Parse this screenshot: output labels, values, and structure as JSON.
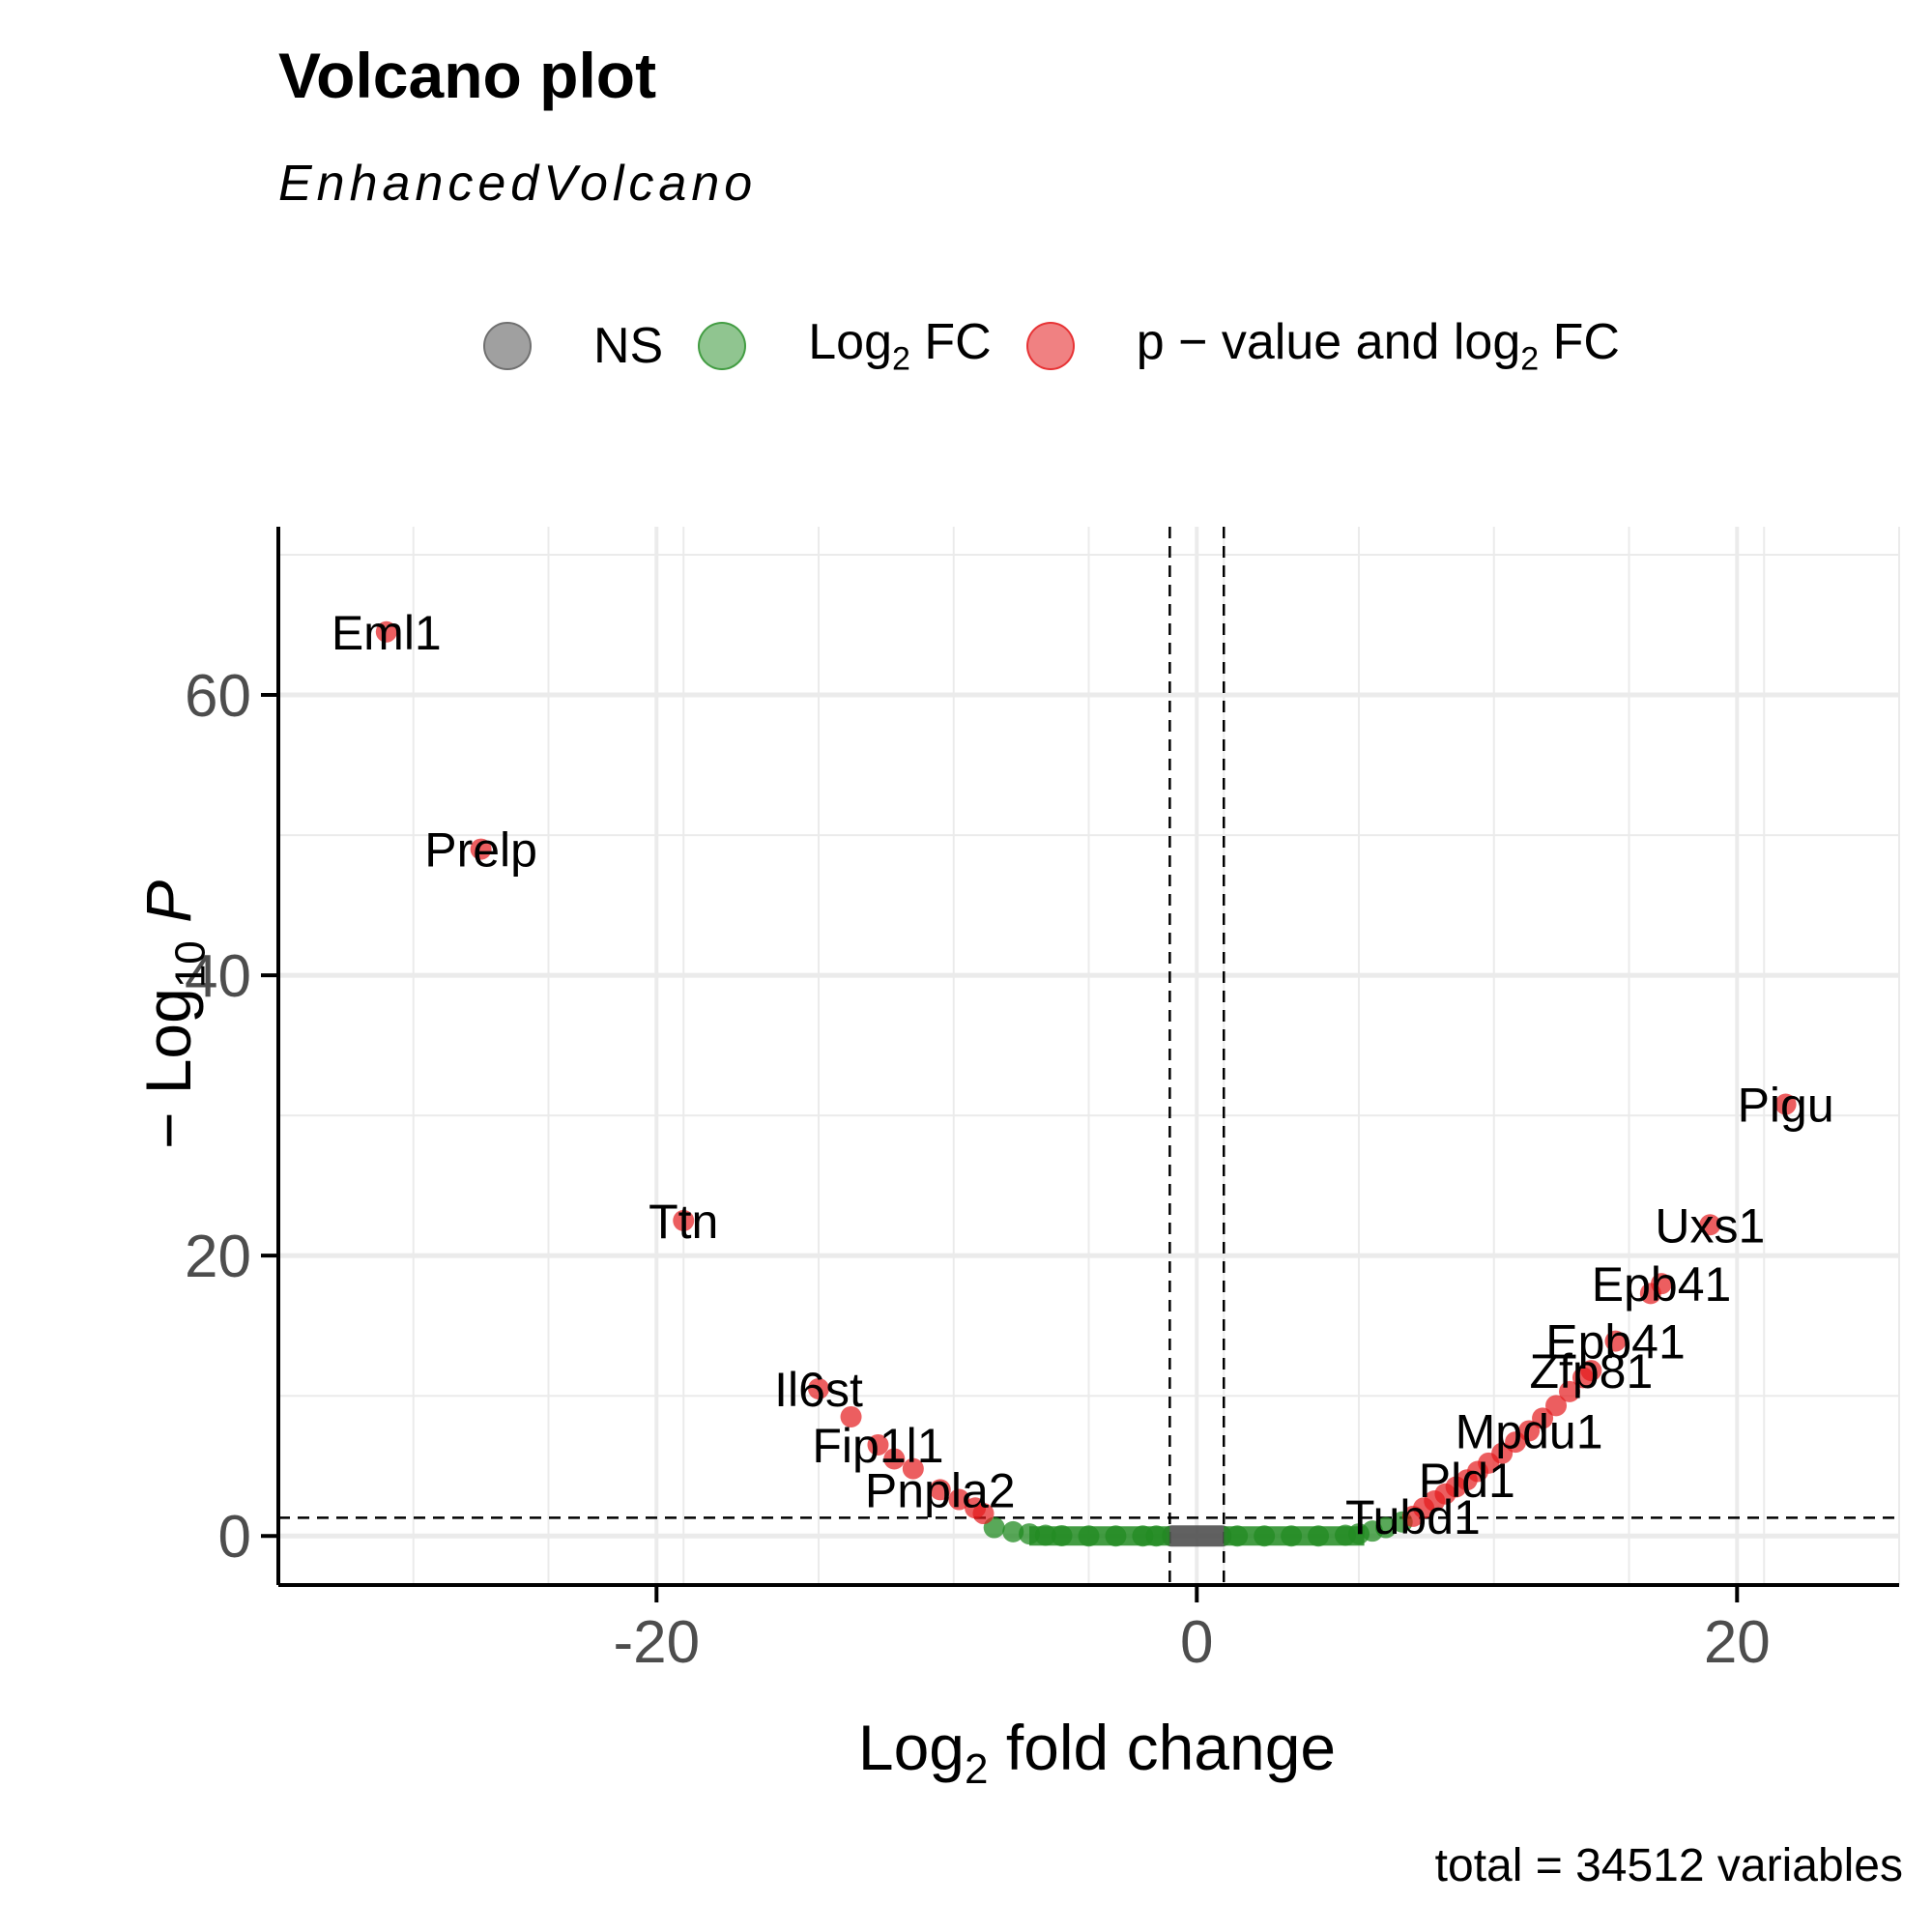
{
  "header": {
    "title": "Volcano plot",
    "subtitle": "EnhancedVolcano"
  },
  "legend": {
    "items": [
      {
        "label": "NS",
        "color": "#808080"
      },
      {
        "label_main": "Log",
        "label_sub": "2",
        "label_tail": " FC",
        "color": "#228B22"
      },
      {
        "label_main": "p − value and log",
        "label_sub": "2",
        "label_tail": " FC",
        "color": "#E41A1C"
      }
    ]
  },
  "axes": {
    "ylabel_prefix": "− Log",
    "ylabel_sub": "10",
    "ylabel_var": "P",
    "xlabel_prefix": "Log",
    "xlabel_sub": "2",
    "xlabel_tail": " fold change"
  },
  "caption": "total = 34512 variables",
  "chart_data": {
    "type": "scatter",
    "xlim": [
      -34,
      26
    ],
    "ylim": [
      -3.5,
      72
    ],
    "x_ticks": [
      -20,
      0,
      20
    ],
    "x_tick_labels": [
      "-20",
      "0",
      "20"
    ],
    "y_ticks": [
      0,
      20,
      40,
      60
    ],
    "y_tick_labels": [
      "0",
      "20",
      "40",
      "60"
    ],
    "grid": true,
    "legend_position": "top",
    "cutoffs": {
      "fc": [
        -1,
        1
      ],
      "pvalue_neglog10": 1.3
    },
    "colors": {
      "ns": "#808080",
      "fc": "#228B22",
      "both": "#E41A1C"
    },
    "ns_range": [
      -1,
      1
    ],
    "fc_points": [
      [
        -7.5,
        0.6
      ],
      [
        -6.8,
        0.3
      ],
      [
        -6.2,
        0.15
      ],
      [
        -5.6,
        0.05
      ],
      [
        -5.0,
        0.02
      ],
      [
        -4.0,
        0.0
      ],
      [
        -3.0,
        0.0
      ],
      [
        -2.0,
        0.0
      ],
      [
        -1.5,
        0.0
      ],
      [
        1.5,
        0.0
      ],
      [
        2.5,
        0.0
      ],
      [
        3.5,
        0.0
      ],
      [
        4.5,
        0.0
      ],
      [
        5.5,
        0.05
      ],
      [
        6.0,
        0.15
      ],
      [
        6.5,
        0.35
      ],
      [
        7.0,
        0.6
      ],
      [
        7.6,
        1.0
      ]
    ],
    "sig_points": [
      [
        -30,
        64.5
      ],
      [
        -26.5,
        49
      ],
      [
        -19,
        22.5
      ],
      [
        -14,
        10.5
      ],
      [
        -12.8,
        8.5
      ],
      [
        -11.8,
        6.5
      ],
      [
        -11.2,
        5.5
      ],
      [
        -10.5,
        4.8
      ],
      [
        -9.5,
        3.3
      ],
      [
        -8.8,
        2.6
      ],
      [
        -8.2,
        2.0
      ],
      [
        -7.9,
        1.6
      ],
      [
        8.0,
        1.4
      ],
      [
        8.4,
        2.0
      ],
      [
        8.8,
        2.5
      ],
      [
        9.2,
        3.0
      ],
      [
        9.6,
        3.5
      ],
      [
        10.0,
        4.0
      ],
      [
        10.4,
        4.6
      ],
      [
        10.8,
        5.2
      ],
      [
        11.3,
        5.9
      ],
      [
        11.8,
        6.7
      ],
      [
        12.3,
        7.5
      ],
      [
        12.8,
        8.4
      ],
      [
        13.3,
        9.3
      ],
      [
        13.8,
        10.3
      ],
      [
        14.3,
        11.3
      ],
      [
        14.6,
        11.8
      ],
      [
        15.5,
        13.9
      ],
      [
        16.8,
        17.3
      ],
      [
        17.2,
        18
      ],
      [
        19,
        22.2
      ],
      [
        21.8,
        30.8
      ]
    ],
    "annotations": [
      {
        "label": "Eml1",
        "x": -30,
        "y": 64.5
      },
      {
        "label": "Prelp",
        "x": -26.5,
        "y": 49
      },
      {
        "label": "Ttn",
        "x": -19,
        "y": 22.5
      },
      {
        "label": "Il6st",
        "x": -14,
        "y": 10.5
      },
      {
        "label": "Fip1l1",
        "x": -11.8,
        "y": 6.5
      },
      {
        "label": "Pnpla2",
        "x": -9.5,
        "y": 3.3
      },
      {
        "label": "Pigu",
        "x": 21.8,
        "y": 30.8
      },
      {
        "label": "Uxs1",
        "x": 19,
        "y": 22.2
      },
      {
        "label": "Epb41",
        "x": 17.2,
        "y": 18
      },
      {
        "label": "Epb41",
        "x": 15.5,
        "y": 13.9
      },
      {
        "label": "Zfp81",
        "x": 14.6,
        "y": 11.8
      },
      {
        "label": "Mpdu1",
        "x": 12.3,
        "y": 7.5
      },
      {
        "label": "Pld1",
        "x": 10.0,
        "y": 4.0
      },
      {
        "label": "Tubd1",
        "x": 8.0,
        "y": 1.4
      }
    ]
  }
}
